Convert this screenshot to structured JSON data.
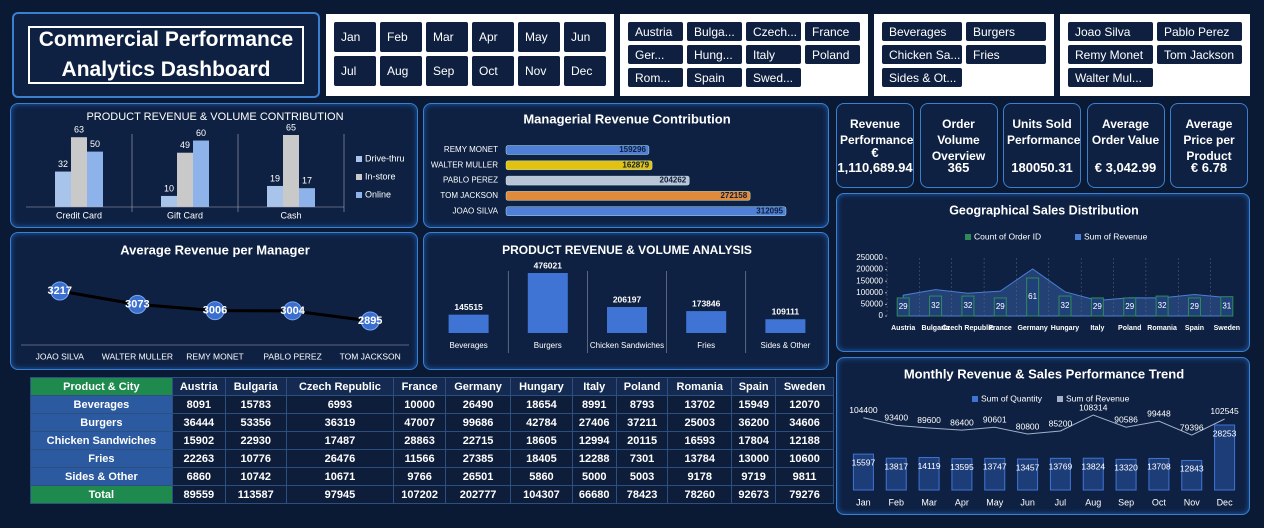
{
  "title": "Commercial Performance Analytics Dashboard",
  "slicers": [
    {
      "items": [
        "Jan",
        "Feb",
        "Mar",
        "Apr",
        "May",
        "Jun",
        "Jul",
        "Aug",
        "Sep",
        "Oct",
        "Nov",
        "Dec"
      ]
    },
    {
      "items": [
        "Austria",
        "Bulga...",
        "Czech...",
        "France",
        "Ger...",
        "Hung...",
        "Italy",
        "Poland",
        "Rom...",
        "Spain",
        "Swed..."
      ]
    },
    {
      "items": [
        "Beverages",
        "Burgers",
        "Chicken Sa...",
        "Fries",
        "Sides & Ot..."
      ]
    },
    {
      "items": [
        "Joao Silva",
        "Pablo Perez",
        "Remy Monet",
        "Tom Jackson",
        "Walter Mul..."
      ]
    }
  ],
  "kpis": [
    {
      "label": "Revenue Performance",
      "value": "€ 1,110,689.94"
    },
    {
      "label": "Order Volume Overview",
      "value": "365"
    },
    {
      "label": "Units Sold Performance",
      "value": "180050.31"
    },
    {
      "label": "Average Order Value",
      "value": "€ 3,042.99"
    },
    {
      "label": "Average Price per Product",
      "value": "€ 6.78"
    }
  ],
  "chart_data": [
    {
      "type": "grouped-bar",
      "title": "PRODUCT REVENUE & VOLUME CONTRIBUTION",
      "categories": [
        "Credit Card",
        "Gift Card",
        "Cash"
      ],
      "series": [
        {
          "name": "Drive-thru",
          "color": "#a9c4eb",
          "values": [
            32,
            10,
            19
          ]
        },
        {
          "name": "In-store",
          "color": "#c9c9c9",
          "values": [
            63,
            49,
            65
          ]
        },
        {
          "name": "Online",
          "color": "#8db3ea",
          "values": [
            50,
            60,
            17
          ]
        }
      ]
    },
    {
      "type": "hbar",
      "title": "Managerial Revenue Contribution",
      "categories": [
        "REMY MONET",
        "WALTER MULLER",
        "PABLO PEREZ",
        "TOM JACKSON",
        "JOAO SILVA"
      ],
      "values": [
        159296,
        162879,
        204262,
        272158,
        312095
      ],
      "colors": [
        "#4f7fd6",
        "#e3c20f",
        "#b9c4d6",
        "#e08a3a",
        "#4f7fd6"
      ]
    },
    {
      "type": "line",
      "title": "Average Revenue per Manager",
      "categories": [
        "JOAO SILVA",
        "WALTER MULLER",
        "REMY MONET",
        "PABLO PEREZ",
        "TOM JACKSON"
      ],
      "values": [
        3217,
        3073,
        3006,
        3004,
        2895
      ],
      "color": "#3a6fd0"
    },
    {
      "type": "bar",
      "title": "PRODUCT REVENUE & VOLUME ANALYSIS",
      "categories": [
        "Beverages",
        "Burgers",
        "Chicken Sandwiches",
        "Fries",
        "Sides & Other"
      ],
      "values": [
        145515,
        476021,
        206197,
        173846,
        109111
      ],
      "color": "#3f74d4"
    },
    {
      "type": "combo",
      "title": "Geographical Sales Distribution",
      "categories": [
        "Austria",
        "Bulgaria",
        "Czech Republic",
        "France",
        "Germany",
        "Hungary",
        "Italy",
        "Poland",
        "Romania",
        "Spain",
        "Sweden"
      ],
      "series": [
        {
          "name": "Count of Order ID",
          "color": "#2e8b57",
          "values": [
            29,
            32,
            32,
            29,
            61,
            32,
            29,
            29,
            32,
            29,
            31
          ]
        },
        {
          "name": "Sum of Revenue",
          "color": "#4a7fd4",
          "values": [
            89559,
            113587,
            97945,
            107202,
            202777,
            104307,
            66680,
            78423,
            78260,
            92673,
            79276
          ]
        }
      ],
      "ylim": [
        0,
        250000
      ],
      "yticks": [
        0,
        50000,
        100000,
        150000,
        200000,
        250000
      ]
    },
    {
      "type": "combo-line",
      "title": "Monthly Revenue & Sales Performance Trend",
      "categories": [
        "Jan",
        "Feb",
        "Mar",
        "Apr",
        "May",
        "Jun",
        "Jul",
        "Aug",
        "Sep",
        "Oct",
        "Nov",
        "Dec"
      ],
      "series": [
        {
          "name": "Sum of Quantity",
          "color": "#3f74d4",
          "values": [
            15597,
            13817,
            14119,
            13595,
            13747,
            13457,
            13769,
            13824,
            13320,
            13708,
            12843,
            28253
          ]
        },
        {
          "name": "Sum of Revenue",
          "color": "#9fb0c8",
          "values": [
            104400,
            93400,
            89600,
            86400,
            90601,
            80800,
            85200,
            108314,
            90586,
            99448,
            79396,
            102545
          ]
        }
      ]
    }
  ],
  "table": {
    "header": [
      "Product & City",
      "Austria",
      "Bulgaria",
      "Czech Republic",
      "France",
      "Germany",
      "Hungary",
      "Italy",
      "Poland",
      "Romania",
      "Spain",
      "Sweden"
    ],
    "rows": [
      [
        "Beverages",
        8091,
        15783,
        6993,
        10000,
        26490,
        18654,
        8991,
        8793,
        13702,
        15949,
        12070
      ],
      [
        "Burgers",
        36444,
        53356,
        36319,
        47007,
        99686,
        42784,
        27406,
        37211,
        25003,
        36200,
        34606
      ],
      [
        "Chicken Sandwiches",
        15902,
        22930,
        17487,
        28863,
        22715,
        18605,
        12994,
        20115,
        16593,
        17804,
        12188
      ],
      [
        "Fries",
        22263,
        10776,
        26476,
        11566,
        27385,
        18405,
        12288,
        7301,
        13784,
        13000,
        10600
      ],
      [
        "Sides & Other",
        6860,
        10742,
        10671,
        9766,
        26501,
        5860,
        5000,
        5003,
        9178,
        9719,
        9811
      ],
      [
        "Total",
        89559,
        113587,
        97945,
        107202,
        202777,
        104307,
        66680,
        78423,
        78260,
        92673,
        79276
      ]
    ]
  }
}
